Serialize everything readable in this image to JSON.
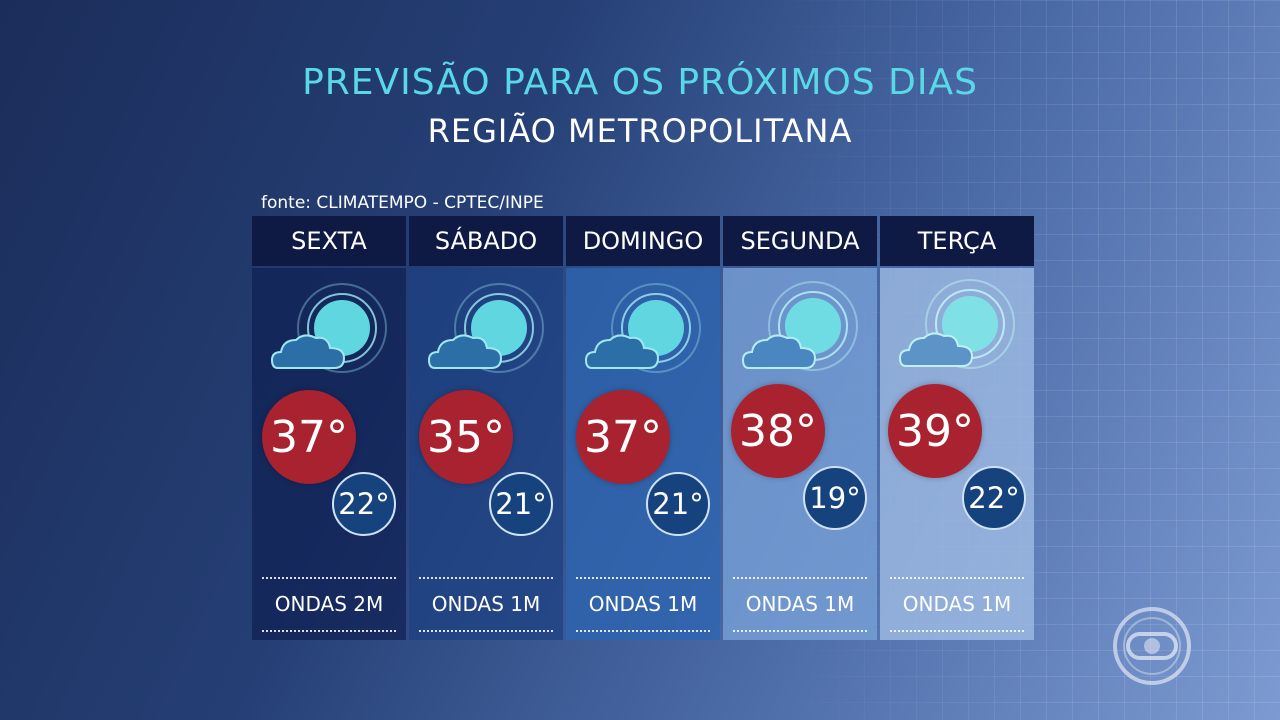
{
  "header": {
    "title": "PREVISÃO PARA OS PRÓXIMOS DIAS",
    "subtitle": "REGIÃO METROPOLITANA",
    "source": "fonte: CLIMATEMPO - CPTEC/INPE"
  },
  "forecast": [
    {
      "day": "SEXTA",
      "icon": "sun-behind-cloud-icon",
      "max": "37°",
      "min": "22°",
      "waves": "ONDAS 2M"
    },
    {
      "day": "SÁBADO",
      "icon": "sun-behind-cloud-icon",
      "max": "35°",
      "min": "21°",
      "waves": "ONDAS 1M"
    },
    {
      "day": "DOMINGO",
      "icon": "sun-behind-cloud-icon",
      "max": "37°",
      "min": "21°",
      "waves": "ONDAS 1M"
    },
    {
      "day": "SEGUNDA",
      "icon": "sun-behind-cloud-icon",
      "max": "38°",
      "min": "19°",
      "waves": "ONDAS 1M"
    },
    {
      "day": "TERÇA",
      "icon": "sun-behind-cloud-icon",
      "max": "39°",
      "min": "22°",
      "waves": "ONDAS 1M"
    }
  ],
  "colors": {
    "title": "#59d9e8",
    "header_bg": "#0e1a44",
    "max_temp_bg": "#a8232f",
    "min_temp_bg": "#16427e"
  }
}
